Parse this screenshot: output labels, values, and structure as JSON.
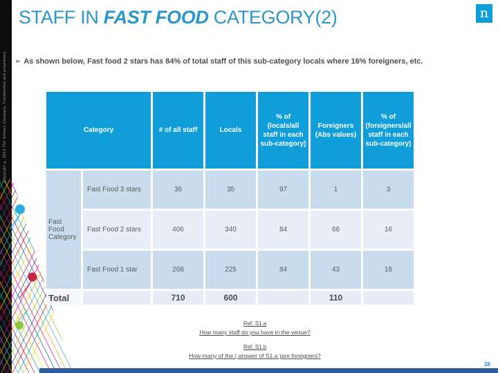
{
  "slide": {
    "title_prefix": "STAFF IN ",
    "title_emphasis": "FAST FOOD",
    "title_suffix": " CATEGORY(2)",
    "bullet_marker": "➢",
    "bullet": "As shown below, Fast food 2 stars has 84% of total staff of this sub-category locals where 16% foreigners, etc.",
    "logo_letter": "n",
    "copyright": "Copyright © 2013 The Nielsen Company. Confidential and proprietary.",
    "page_number": "28"
  },
  "table": {
    "headers": [
      "Category",
      "# of all staff",
      "Locals",
      "% of (locals/all staff in each sub-category)",
      "Foreigners (Abs values)",
      "% of (foreigners/all staff in each sub-category)"
    ],
    "group_label": "Fast Food Category",
    "rows": [
      {
        "label": "Fast Food 3 stars",
        "all_staff": "36",
        "locals": "35",
        "pct_locals": "97",
        "foreigners": "1",
        "pct_foreigners": "3"
      },
      {
        "label": "Fast Food 2 stars",
        "all_staff": "406",
        "locals": "340",
        "pct_locals": "84",
        "foreigners": "66",
        "pct_foreigners": "16"
      },
      {
        "label": "Fast Food 1 star",
        "all_staff": "268",
        "locals": "225",
        "pct_locals": "84",
        "foreigners": "43",
        "pct_foreigners": "16"
      }
    ],
    "total": {
      "label": "Total",
      "all_staff": "710",
      "locals": "600",
      "pct_locals": "",
      "foreigners": "110",
      "pct_foreigners": ""
    }
  },
  "footer": {
    "ref_a_title": "Ref. S1.a",
    "ref_a_text": "How many staff do you have in the  venue?",
    "ref_b_title": "Ref. S1.b",
    "ref_b_text": "How many of the ( answer of S1.a )are foreigners?"
  },
  "colors": {
    "header_blue": "#0f9ed9",
    "title_blue": "#2b96c8",
    "row_dark": "#c8dcee",
    "row_light": "#e8eef7",
    "accent_bar_blue": "#2b5d9f",
    "dot_blue": "#29abe2",
    "dot_red": "#c9234a",
    "dot_green": "#8cc63f",
    "mesh_palette": [
      "#e6007e",
      "#f5a800",
      "#36a9e1",
      "#8cc63f",
      "#662d91",
      "#e30613",
      "#00a99d",
      "#ffd400",
      "#ec008c",
      "#0054a6"
    ]
  }
}
